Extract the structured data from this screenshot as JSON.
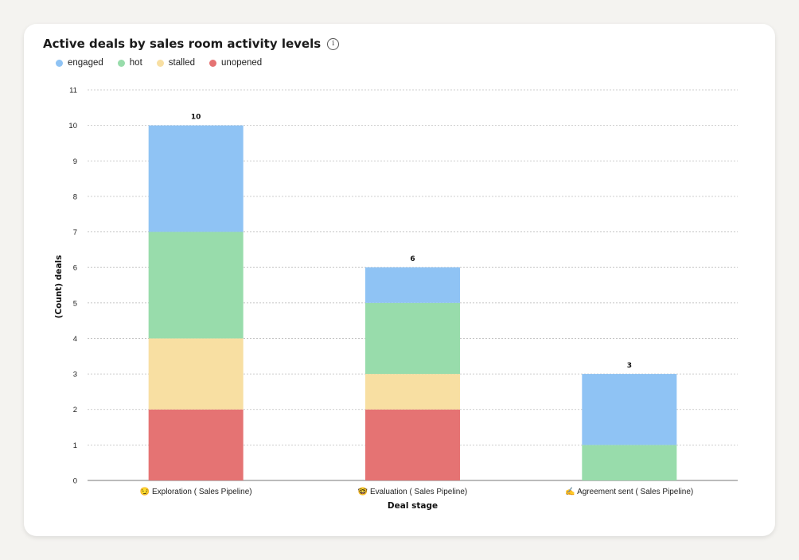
{
  "header": {
    "title": "Active deals by sales room activity levels",
    "info_icon": "info-circle-icon"
  },
  "colors": {
    "engaged": "#8fc3f4",
    "hot": "#98dcab",
    "stalled": "#f8dfa2",
    "unopened": "#e57373",
    "gridline": "#bdbdbd",
    "axis": "#777777"
  },
  "chart_data": {
    "type": "bar",
    "stacked": true,
    "title": "Active deals by sales room activity levels",
    "xlabel": "Deal stage",
    "ylabel": "(Count) deals",
    "ylim": [
      0,
      11
    ],
    "yticks": [
      0,
      1,
      2,
      3,
      4,
      5,
      6,
      7,
      8,
      9,
      10,
      11
    ],
    "grid": true,
    "legend_position": "top-left",
    "categories": [
      "😏 Exploration ( Sales Pipeline)",
      "🤓 Evaluation ( Sales Pipeline)",
      "✍️ Agreement sent ( Sales Pipeline)"
    ],
    "series": [
      {
        "name": "unopened",
        "values": [
          2,
          2,
          0
        ]
      },
      {
        "name": "stalled",
        "values": [
          2,
          1,
          0
        ]
      },
      {
        "name": "hot",
        "values": [
          3,
          2,
          1
        ]
      },
      {
        "name": "engaged",
        "values": [
          3,
          1,
          2
        ]
      }
    ],
    "legend_order": [
      "engaged",
      "hot",
      "stalled",
      "unopened"
    ],
    "totals": [
      10,
      6,
      3
    ]
  }
}
